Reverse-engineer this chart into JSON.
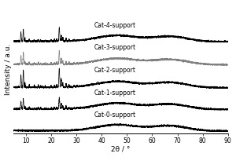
{
  "ylabel": "Intensity / a.u.",
  "xlabel": "2θ / °",
  "xlim": [
    5,
    90
  ],
  "xticks": [
    10,
    20,
    30,
    40,
    50,
    60,
    70,
    80,
    90
  ],
  "labels": [
    "Cat-0-support",
    "Cat-1-support",
    "Cat-2-support",
    "Cat-3-support",
    "Cat-4-support"
  ],
  "colors": [
    "black",
    "black",
    "black",
    "gray",
    "black"
  ],
  "offsets": [
    0.0,
    0.16,
    0.32,
    0.49,
    0.66
  ],
  "scales": [
    0.0,
    0.55,
    0.9,
    0.65,
    0.65
  ],
  "broad_scales": [
    1.0,
    1.0,
    1.0,
    1.0,
    1.0
  ],
  "background_color": "white",
  "label_fontsize": 5.5,
  "axis_fontsize": 6.5,
  "tick_fontsize": 5.5,
  "linewidth": 0.5
}
